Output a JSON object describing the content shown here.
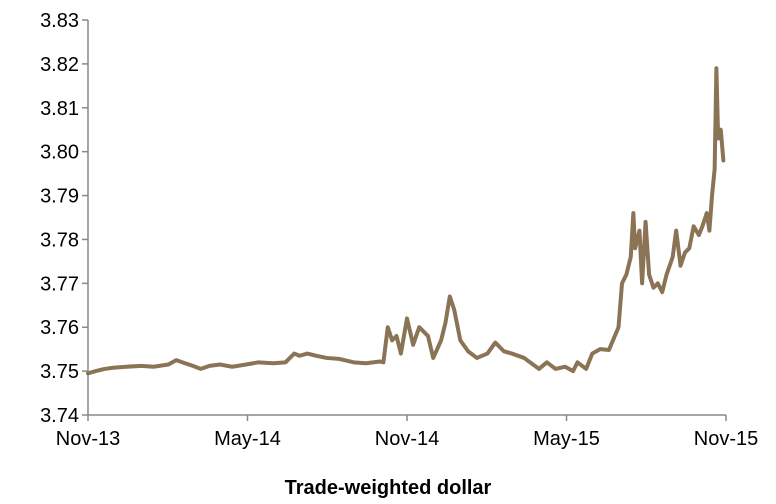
{
  "chart_data": {
    "type": "line",
    "title": "",
    "xlabel": "Trade-weighted dollar",
    "ylabel": "",
    "ylim": [
      3.74,
      3.83
    ],
    "yticks": [
      "3.74",
      "3.75",
      "3.76",
      "3.77",
      "3.78",
      "3.79",
      "3.80",
      "3.81",
      "3.82",
      "3.83"
    ],
    "xticks": [
      "Nov-13",
      "May-14",
      "Nov-14",
      "May-15",
      "Nov-15"
    ],
    "xrange": [
      "2013-11-01",
      "2015-11-01"
    ],
    "grid": false,
    "legend": "none",
    "series": [
      {
        "color": "#8B7355",
        "points": [
          [
            "2013-11-01",
            3.7495
          ],
          [
            "2013-11-10",
            3.75
          ],
          [
            "2013-11-20",
            3.7505
          ],
          [
            "2013-12-01",
            3.7508
          ],
          [
            "2013-12-15",
            3.751
          ],
          [
            "2014-01-01",
            3.7512
          ],
          [
            "2014-01-15",
            3.751
          ],
          [
            "2014-02-01",
            3.7515
          ],
          [
            "2014-02-10",
            3.7525
          ],
          [
            "2014-02-20",
            3.7518
          ],
          [
            "2014-03-01",
            3.7512
          ],
          [
            "2014-03-10",
            3.7505
          ],
          [
            "2014-03-20",
            3.7512
          ],
          [
            "2014-04-01",
            3.7515
          ],
          [
            "2014-04-15",
            3.751
          ],
          [
            "2014-05-01",
            3.7515
          ],
          [
            "2014-05-15",
            3.752
          ],
          [
            "2014-06-01",
            3.7518
          ],
          [
            "2014-06-15",
            3.752
          ],
          [
            "2014-06-25",
            3.754
          ],
          [
            "2014-07-01",
            3.7535
          ],
          [
            "2014-07-10",
            3.754
          ],
          [
            "2014-07-20",
            3.7535
          ],
          [
            "2014-08-01",
            3.753
          ],
          [
            "2014-08-15",
            3.7528
          ],
          [
            "2014-09-01",
            3.752
          ],
          [
            "2014-09-15",
            3.7518
          ],
          [
            "2014-10-01",
            3.7522
          ],
          [
            "2014-10-05",
            3.752
          ],
          [
            "2014-10-10",
            3.76
          ],
          [
            "2014-10-15",
            3.757
          ],
          [
            "2014-10-20",
            3.758
          ],
          [
            "2014-10-25",
            3.754
          ],
          [
            "2014-11-01",
            3.762
          ],
          [
            "2014-11-08",
            3.756
          ],
          [
            "2014-11-15",
            3.76
          ],
          [
            "2014-11-25",
            3.758
          ],
          [
            "2014-12-01",
            3.753
          ],
          [
            "2014-12-10",
            3.757
          ],
          [
            "2014-12-15",
            3.761
          ],
          [
            "2014-12-20",
            3.767
          ],
          [
            "2014-12-25",
            3.764
          ],
          [
            "2015-01-01",
            3.757
          ],
          [
            "2015-01-10",
            3.7545
          ],
          [
            "2015-01-20",
            3.753
          ],
          [
            "2015-02-01",
            3.754
          ],
          [
            "2015-02-10",
            3.7565
          ],
          [
            "2015-02-20",
            3.7545
          ],
          [
            "2015-03-01",
            3.754
          ],
          [
            "2015-03-15",
            3.753
          ],
          [
            "2015-04-01",
            3.7505
          ],
          [
            "2015-04-10",
            3.752
          ],
          [
            "2015-04-20",
            3.7505
          ],
          [
            "2015-05-01",
            3.751
          ],
          [
            "2015-05-10",
            3.75
          ],
          [
            "2015-05-15",
            3.752
          ],
          [
            "2015-05-25",
            3.7505
          ],
          [
            "2015-06-01",
            3.754
          ],
          [
            "2015-06-10",
            3.755
          ],
          [
            "2015-06-20",
            3.7548
          ],
          [
            "2015-07-01",
            3.76
          ],
          [
            "2015-07-05",
            3.77
          ],
          [
            "2015-07-10",
            3.772
          ],
          [
            "2015-07-15",
            3.776
          ],
          [
            "2015-07-18",
            3.786
          ],
          [
            "2015-07-20",
            3.778
          ],
          [
            "2015-07-25",
            3.782
          ],
          [
            "2015-07-28",
            3.77
          ],
          [
            "2015-08-01",
            3.784
          ],
          [
            "2015-08-05",
            3.772
          ],
          [
            "2015-08-10",
            3.769
          ],
          [
            "2015-08-15",
            3.77
          ],
          [
            "2015-08-20",
            3.768
          ],
          [
            "2015-08-25",
            3.772
          ],
          [
            "2015-09-01",
            3.776
          ],
          [
            "2015-09-05",
            3.782
          ],
          [
            "2015-09-10",
            3.774
          ],
          [
            "2015-09-15",
            3.777
          ],
          [
            "2015-09-20",
            3.778
          ],
          [
            "2015-09-25",
            3.783
          ],
          [
            "2015-10-01",
            3.781
          ],
          [
            "2015-10-05",
            3.783
          ],
          [
            "2015-10-10",
            3.786
          ],
          [
            "2015-10-13",
            3.782
          ],
          [
            "2015-10-16",
            3.79
          ],
          [
            "2015-10-19",
            3.796
          ],
          [
            "2015-10-21",
            3.819
          ],
          [
            "2015-10-23",
            3.803
          ],
          [
            "2015-10-26",
            3.805
          ],
          [
            "2015-10-29",
            3.798
          ]
        ]
      }
    ]
  }
}
